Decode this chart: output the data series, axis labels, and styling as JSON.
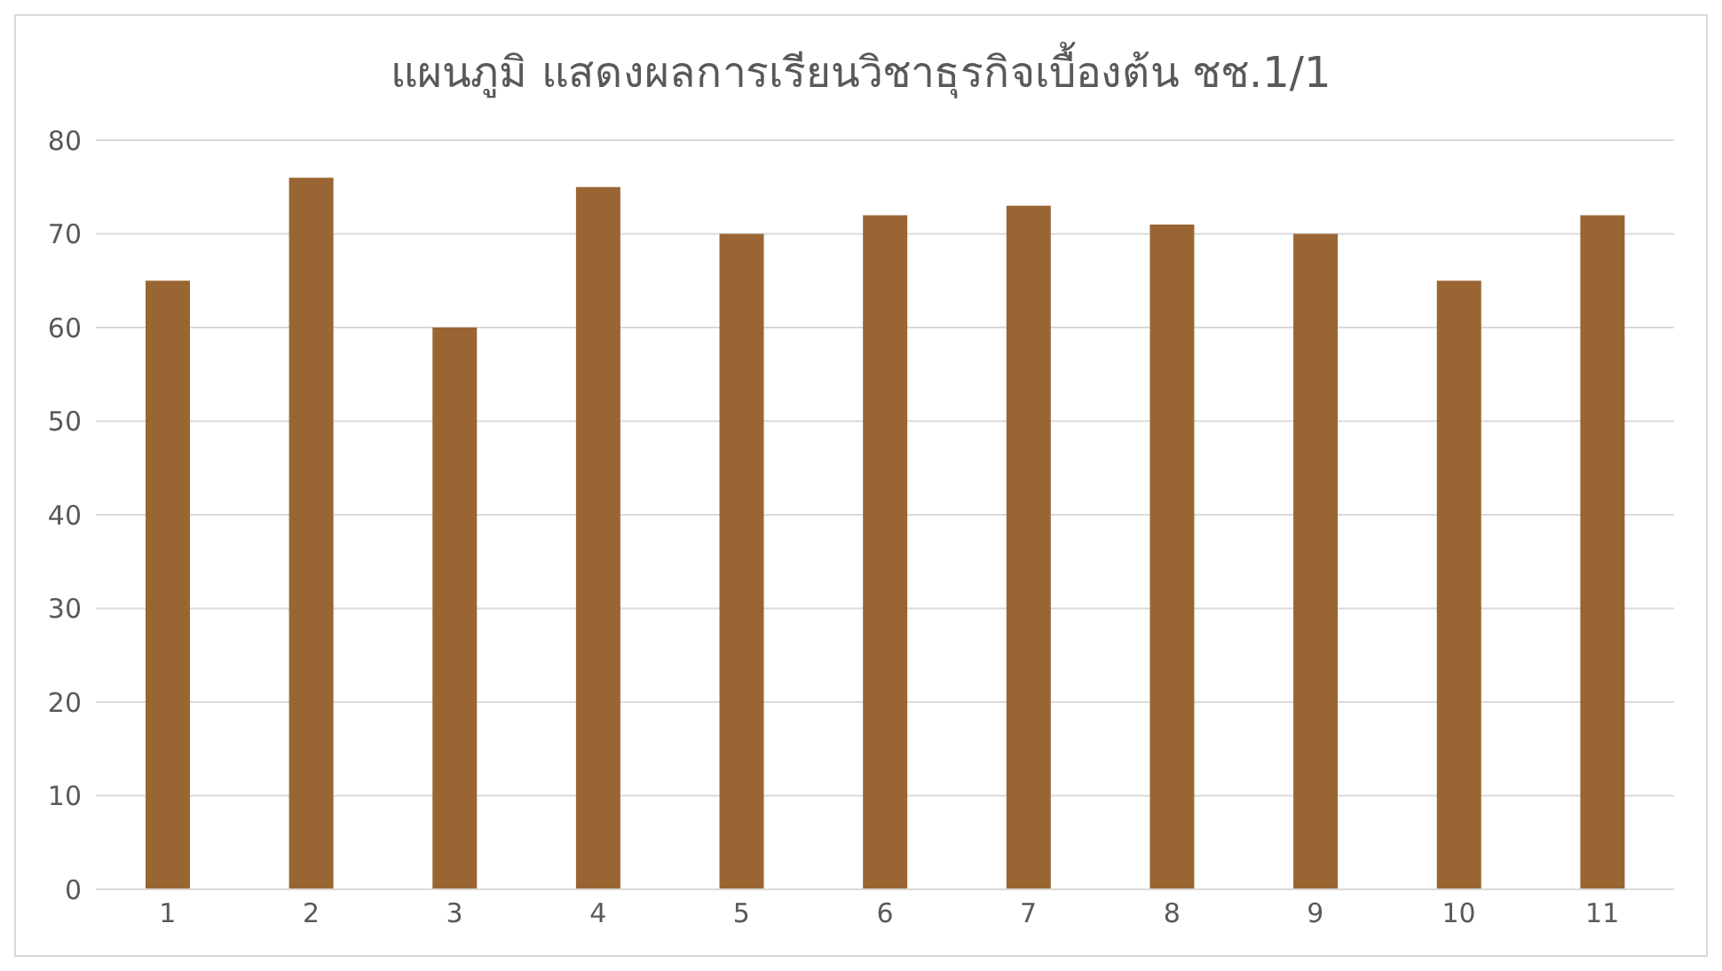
{
  "chart_data": {
    "type": "bar",
    "title": "แผนภูมิ แสดงผลการเรียนวิชาธุรกิจเบื้องต้น ชช.1/1",
    "categories": [
      "1",
      "2",
      "3",
      "4",
      "5",
      "6",
      "7",
      "8",
      "9",
      "10",
      "11"
    ],
    "values": [
      65,
      76,
      60,
      75,
      70,
      72,
      73,
      71,
      70,
      65,
      72
    ],
    "color": "#996633",
    "ylim": [
      0,
      80
    ],
    "yticks": [
      0,
      10,
      20,
      30,
      40,
      50,
      60,
      70,
      80
    ],
    "grid": "y"
  }
}
